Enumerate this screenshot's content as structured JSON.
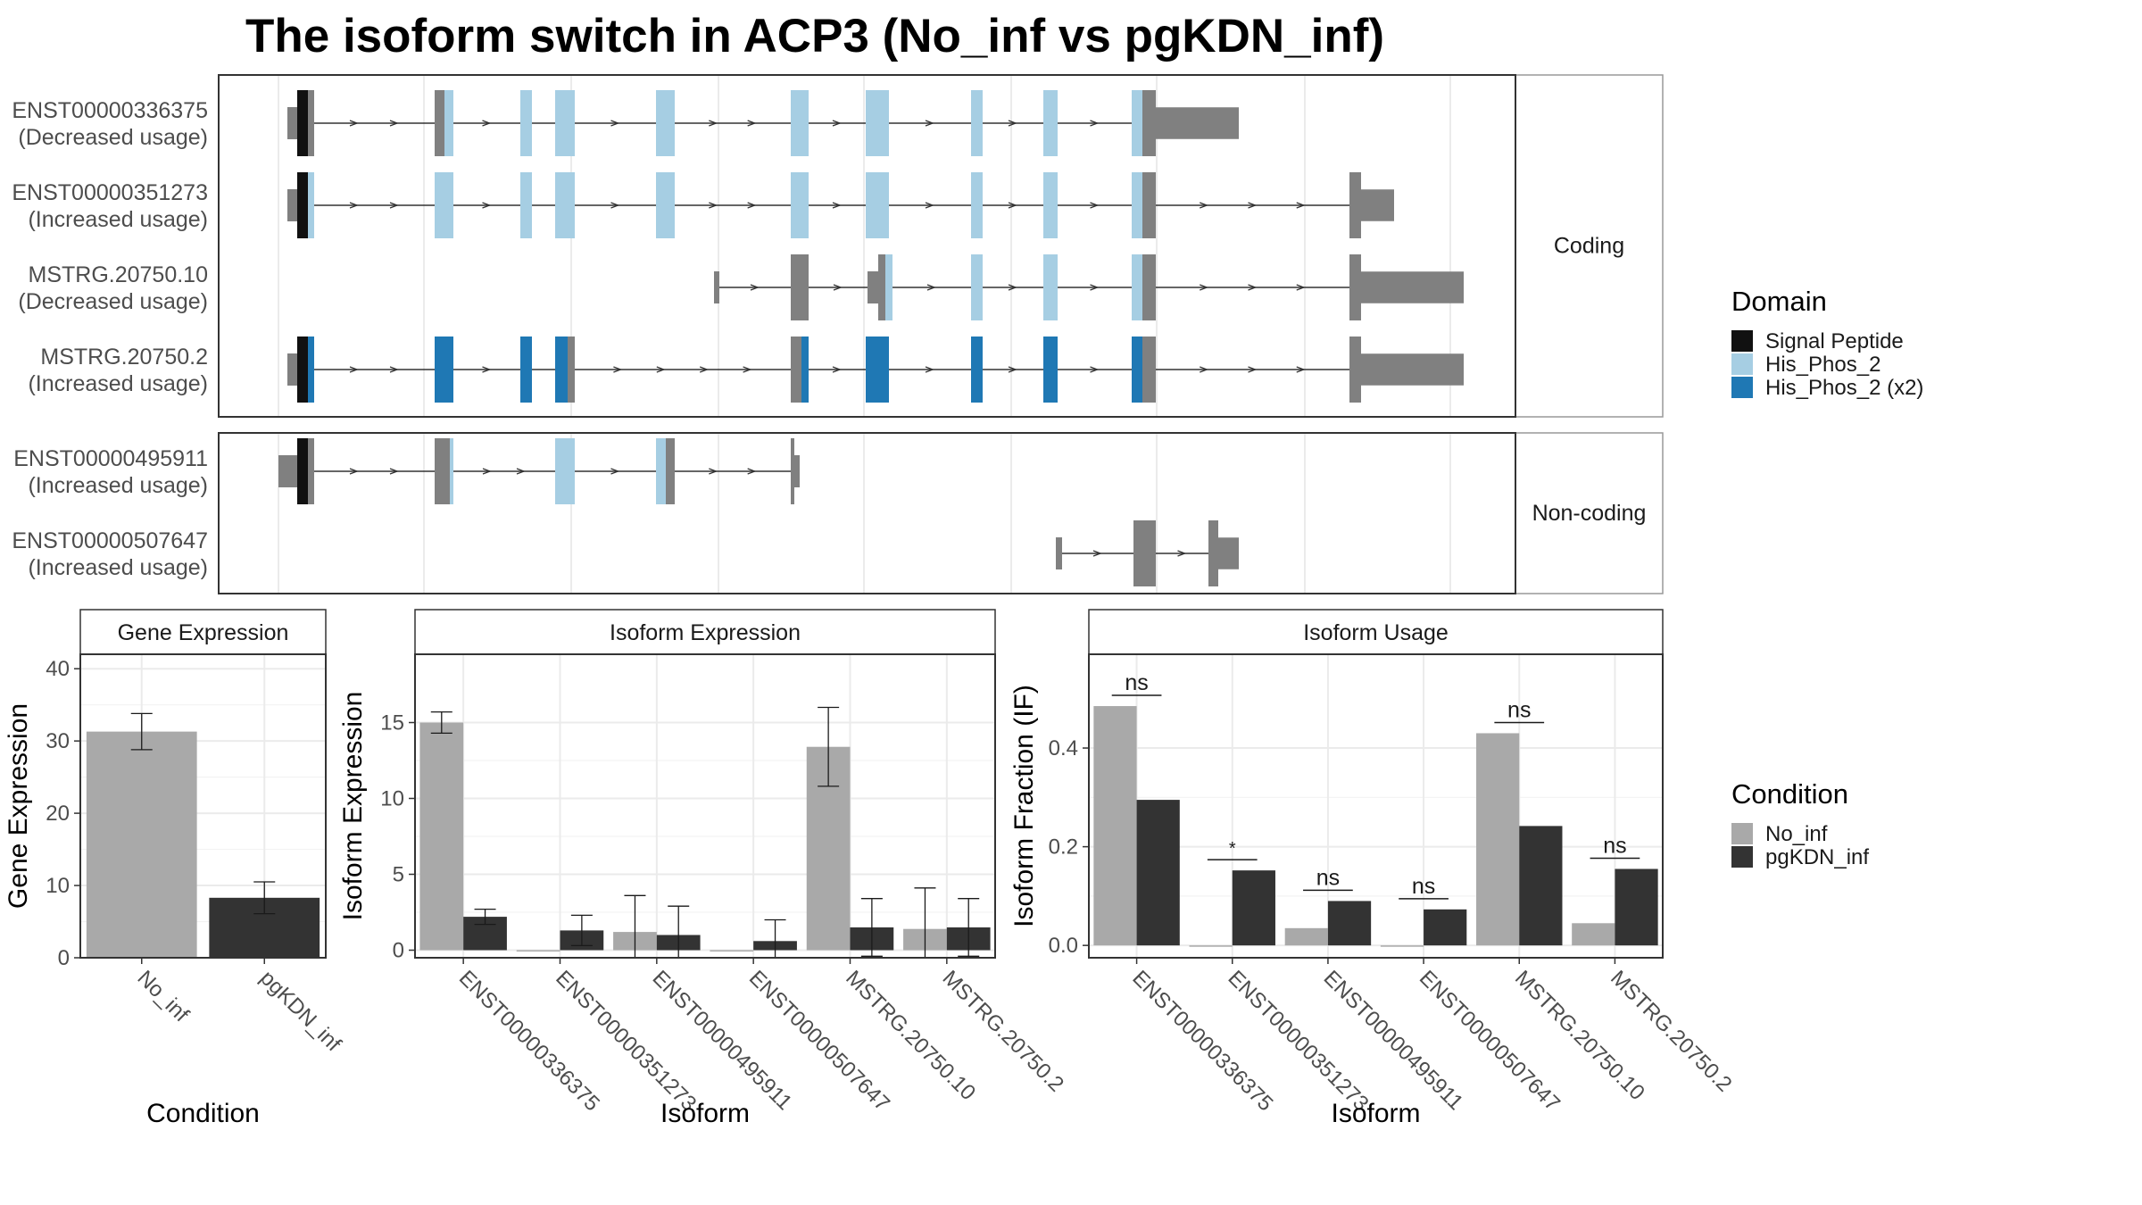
{
  "title": "The isoform switch in ACP3 (No_inf vs pgKDN_inf)",
  "legends": {
    "domain": {
      "title": "Domain",
      "items": [
        {
          "label": "Signal Peptide",
          "color": "#111111"
        },
        {
          "label": "His_Phos_2",
          "color": "#a6cee3"
        },
        {
          "label": "His_Phos_2 (x2)",
          "color": "#1f78b4"
        }
      ]
    },
    "condition": {
      "title": "Condition",
      "items": [
        {
          "label": "No_inf",
          "color": "#a9a9a9"
        },
        {
          "label": "pgKDN_inf",
          "color": "#333333"
        }
      ]
    }
  },
  "chart_data": [
    {
      "type": "table",
      "name": "isoform-structures",
      "groups": [
        "Coding",
        "Non-coding"
      ],
      "isoforms": [
        {
          "id": "ENST00000336375",
          "usage": "(Decreased usage)",
          "group": "Coding"
        },
        {
          "id": "ENST00000351273",
          "usage": "(Increased usage)",
          "group": "Coding"
        },
        {
          "id": "MSTRG.20750.10",
          "usage": "(Decreased usage)",
          "group": "Coding"
        },
        {
          "id": "MSTRG.20750.2",
          "usage": "(Increased usage)",
          "group": "Coding"
        },
        {
          "id": "ENST00000495911",
          "usage": "(Increased usage)",
          "group": "Non-coding"
        },
        {
          "id": "ENST00000507647",
          "usage": "(Increased usage)",
          "group": "Non-coding"
        }
      ]
    },
    {
      "type": "bar",
      "title": "Gene Expression",
      "xlabel": "Condition",
      "ylabel": "Gene Expression",
      "categories": [
        "No_inf",
        "pgKDN_inf"
      ],
      "values": [
        31.3,
        8.3
      ],
      "errors": [
        2.5,
        2.2
      ],
      "ylim": [
        0,
        42
      ],
      "yticks": [
        0,
        10,
        20,
        30,
        40
      ]
    },
    {
      "type": "bar",
      "title": "Isoform Expression",
      "xlabel": "Isoform",
      "ylabel": "Isoform Expression",
      "categories": [
        "ENST00000336375",
        "ENST00000351273",
        "ENST00000495911",
        "ENST00000507647",
        "MSTRG.20750.10",
        "MSTRG.20750.2"
      ],
      "series": [
        {
          "name": "No_inf",
          "values": [
            15.0,
            0.0,
            1.2,
            0.0,
            13.4,
            1.4
          ],
          "errors": [
            0.7,
            0.0,
            2.4,
            0.0,
            2.6,
            2.7
          ]
        },
        {
          "name": "pgKDN_inf",
          "values": [
            2.2,
            1.3,
            1.0,
            0.6,
            1.5,
            1.5
          ],
          "errors": [
            0.5,
            1.0,
            1.9,
            1.4,
            1.9,
            1.9
          ]
        }
      ],
      "ylim": [
        -0.5,
        19.5
      ],
      "yticks": [
        0,
        5,
        10,
        15
      ]
    },
    {
      "type": "bar",
      "title": "Isoform Usage",
      "xlabel": "Isoform",
      "ylabel": "Isoform Fraction (IF)",
      "categories": [
        "ENST00000336375",
        "ENST00000351273",
        "ENST00000495911",
        "ENST00000507647",
        "MSTRG.20750.10",
        "MSTRG.20750.2"
      ],
      "series": [
        {
          "name": "No_inf",
          "values": [
            0.485,
            0.0,
            0.035,
            0.0,
            0.43,
            0.045
          ]
        },
        {
          "name": "pgKDN_inf",
          "values": [
            0.295,
            0.152,
            0.09,
            0.073,
            0.242,
            0.155
          ]
        }
      ],
      "significance": [
        "ns",
        "*",
        "ns",
        "ns",
        "ns",
        "ns"
      ],
      "ylim": [
        -0.025,
        0.59
      ],
      "yticks": [
        0.0,
        0.2,
        0.4
      ]
    }
  ]
}
